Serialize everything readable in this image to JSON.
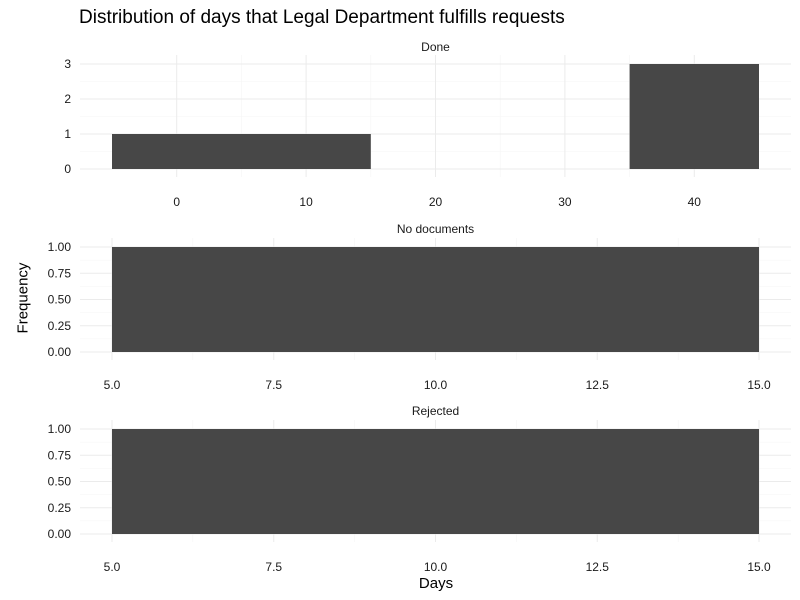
{
  "chart_data": {
    "type": "bar",
    "title": "Distribution of days that Legal Department fulfills requests",
    "xlabel": "Days",
    "ylabel": "Frequency",
    "grid": true,
    "legend": "none",
    "colors": {
      "bar": "#474747",
      "grid_major": "#ebebeb",
      "grid_minor": "#f5f5f5"
    },
    "facets": [
      {
        "name": "Done",
        "xlim": [
          -5,
          45
        ],
        "ylim": [
          0,
          3
        ],
        "x_ticks": [
          0,
          10,
          20,
          30,
          40
        ],
        "x_tick_labels": [
          "0",
          "10",
          "20",
          "30",
          "40"
        ],
        "y_ticks": [
          0,
          1,
          2,
          3
        ],
        "y_tick_labels": [
          "0",
          "1",
          "2",
          "3"
        ],
        "bins": [
          {
            "x0": -5,
            "x1": 15,
            "count": 1
          },
          {
            "x0": 35,
            "x1": 45,
            "count": 3
          }
        ]
      },
      {
        "name": "No documents",
        "xlim": [
          5,
          15
        ],
        "ylim": [
          0,
          1
        ],
        "x_ticks": [
          5,
          7.5,
          10,
          12.5,
          15
        ],
        "x_tick_labels": [
          "5.0",
          "7.5",
          "10.0",
          "12.5",
          "15.0"
        ],
        "y_ticks": [
          0,
          0.25,
          0.5,
          0.75,
          1
        ],
        "y_tick_labels": [
          "0.00",
          "0.25",
          "0.50",
          "0.75",
          "1.00"
        ],
        "bins": [
          {
            "x0": 5,
            "x1": 15,
            "count": 1
          }
        ]
      },
      {
        "name": "Rejected",
        "xlim": [
          5,
          15
        ],
        "ylim": [
          0,
          1
        ],
        "x_ticks": [
          5,
          7.5,
          10,
          12.5,
          15
        ],
        "x_tick_labels": [
          "5.0",
          "7.5",
          "10.0",
          "12.5",
          "15.0"
        ],
        "y_ticks": [
          0,
          0.25,
          0.5,
          0.75,
          1
        ],
        "y_tick_labels": [
          "0.00",
          "0.25",
          "0.50",
          "0.75",
          "1.00"
        ],
        "bins": [
          {
            "x0": 5,
            "x1": 15,
            "count": 1
          }
        ]
      }
    ]
  }
}
